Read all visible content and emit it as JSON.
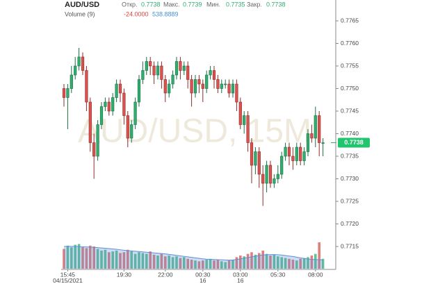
{
  "header": {
    "ohlc": [
      {
        "label": "Откр.",
        "value": "0.7738"
      },
      {
        "label": "Макс.",
        "value": "0.7739"
      },
      {
        "label": "Мин.",
        "value": "0.7735"
      },
      {
        "label": "Закр.",
        "value": "0.7738"
      }
    ],
    "volume_stats": [
      "-24.0000",
      "538.8889"
    ]
  },
  "chart_data": {
    "type": "candlestick",
    "title": "AUD/USD",
    "watermark": "AUD/USD, 15M",
    "categories": [
      null,
      "15:45",
      null,
      null,
      null,
      null,
      null,
      null,
      null,
      null,
      null,
      null,
      null,
      null,
      null,
      null,
      "19:30",
      null,
      null,
      null,
      null,
      null,
      null,
      null,
      null,
      null,
      null,
      "22:00",
      null,
      null,
      null,
      null,
      null,
      null,
      null,
      null,
      null,
      "00:30",
      null,
      null,
      null,
      null,
      null,
      null,
      null,
      null,
      null,
      "03:00",
      null,
      null,
      null,
      null,
      null,
      null,
      null,
      null,
      null,
      "05:30",
      null,
      null,
      null,
      null,
      null,
      null,
      null,
      null,
      null,
      "08:00",
      null,
      null
    ],
    "date_labels": [
      null,
      "04/15/2021",
      null,
      null,
      null,
      null,
      null,
      null,
      null,
      null,
      null,
      null,
      null,
      null,
      null,
      null,
      null,
      null,
      null,
      null,
      null,
      null,
      null,
      null,
      null,
      null,
      null,
      null,
      null,
      null,
      null,
      null,
      null,
      null,
      null,
      null,
      null,
      "16",
      null,
      null,
      null,
      null,
      null,
      null,
      null,
      null,
      null,
      "16",
      null,
      null,
      null,
      null,
      null,
      null,
      null,
      null,
      null,
      null,
      null,
      null,
      null,
      null,
      null,
      null,
      null,
      null,
      null,
      null,
      null,
      null
    ],
    "open": [
      0.775,
      0.7748,
      0.775,
      0.7753,
      0.7755,
      0.7757,
      0.7754,
      0.7747,
      0.7738,
      0.7735,
      0.7742,
      0.7746,
      0.7747,
      0.7745,
      0.7748,
      0.7751,
      0.7749,
      0.7744,
      0.7739,
      0.7742,
      0.7747,
      0.7752,
      0.7754,
      0.7756,
      0.7755,
      0.7753,
      0.7755,
      0.7752,
      0.7749,
      0.7751,
      0.7753,
      0.7756,
      0.7754,
      0.7755,
      0.7752,
      0.7749,
      0.7752,
      0.7751,
      0.775,
      0.7753,
      0.7754,
      0.7752,
      0.775,
      0.7751,
      0.7751,
      0.7749,
      0.7751,
      0.7747,
      0.7742,
      0.7744,
      0.7738,
      0.7733,
      0.7736,
      0.7731,
      0.7729,
      0.7733,
      0.7729,
      0.773,
      0.7731,
      0.7735,
      0.7737,
      0.7735,
      0.7734,
      0.7737,
      0.7734,
      0.7736,
      0.774,
      0.7739,
      0.7744,
      0.7738
    ],
    "high": [
      0.7751,
      0.7751,
      0.7755,
      0.7757,
      0.7759,
      0.7758,
      0.7755,
      0.7748,
      0.774,
      0.7743,
      0.7747,
      0.7748,
      0.7748,
      0.7749,
      0.7752,
      0.7752,
      0.775,
      0.7745,
      0.7743,
      0.7748,
      0.7753,
      0.7756,
      0.7757,
      0.7757,
      0.7756,
      0.7756,
      0.7756,
      0.7753,
      0.7752,
      0.7754,
      0.7757,
      0.7757,
      0.7756,
      0.7756,
      0.7753,
      0.7753,
      0.7753,
      0.7752,
      0.7754,
      0.7755,
      0.7755,
      0.7753,
      0.7752,
      0.7752,
      0.7752,
      0.7752,
      0.7752,
      0.7748,
      0.7745,
      0.7745,
      0.7739,
      0.7737,
      0.7737,
      0.7733,
      0.7734,
      0.7734,
      0.7731,
      0.7733,
      0.7736,
      0.7738,
      0.7738,
      0.7737,
      0.7738,
      0.7738,
      0.7737,
      0.7741,
      0.7742,
      0.7746,
      0.7745,
      0.7739
    ],
    "low": [
      0.7746,
      0.7741,
      0.7749,
      0.7752,
      0.7754,
      0.7753,
      0.7745,
      0.7736,
      0.773,
      0.7734,
      0.7741,
      0.7745,
      0.7744,
      0.7744,
      0.7747,
      0.7747,
      0.7742,
      0.7737,
      0.7738,
      0.7741,
      0.7746,
      0.7751,
      0.7753,
      0.7753,
      0.7751,
      0.7752,
      0.775,
      0.7747,
      0.7748,
      0.775,
      0.7752,
      0.7752,
      0.7753,
      0.775,
      0.7746,
      0.7748,
      0.7749,
      0.7747,
      0.7749,
      0.7752,
      0.775,
      0.7749,
      0.7749,
      0.775,
      0.7748,
      0.7748,
      0.7745,
      0.7741,
      0.774,
      0.7736,
      0.7729,
      0.7731,
      0.7728,
      0.7724,
      0.7727,
      0.7728,
      0.7728,
      0.7729,
      0.773,
      0.7734,
      0.7733,
      0.7732,
      0.7733,
      0.7733,
      0.7733,
      0.7735,
      0.7738,
      0.7737,
      0.7735,
      0.7735
    ],
    "close": [
      0.7748,
      0.775,
      0.7753,
      0.7755,
      0.7757,
      0.7754,
      0.7747,
      0.7738,
      0.7735,
      0.7742,
      0.7746,
      0.7747,
      0.7745,
      0.7748,
      0.7751,
      0.7749,
      0.7744,
      0.7739,
      0.7742,
      0.7747,
      0.7752,
      0.7754,
      0.7756,
      0.7755,
      0.7753,
      0.7755,
      0.7752,
      0.7749,
      0.7751,
      0.7753,
      0.7756,
      0.7754,
      0.7755,
      0.7752,
      0.7749,
      0.7752,
      0.7751,
      0.775,
      0.7753,
      0.7754,
      0.7752,
      0.775,
      0.7751,
      0.7751,
      0.7749,
      0.7751,
      0.7747,
      0.7742,
      0.7744,
      0.7738,
      0.7733,
      0.7736,
      0.7731,
      0.7729,
      0.7733,
      0.7729,
      0.773,
      0.7731,
      0.7735,
      0.7737,
      0.7735,
      0.7734,
      0.7737,
      0.7734,
      0.7736,
      0.774,
      0.7739,
      0.7744,
      0.7738,
      0.7738
    ],
    "up_color": "#2fae6f",
    "down_color": "#d9534f",
    "volume": {
      "name": "Volume (9)",
      "values": [
        1200,
        1400,
        1300,
        1450,
        1500,
        1300,
        1250,
        1400,
        1350,
        1200,
        1100,
        1150,
        1000,
        1050,
        1100,
        950,
        1000,
        1150,
        1050,
        900,
        1000,
        950,
        900,
        1050,
        850,
        800,
        900,
        750,
        800,
        700,
        750,
        650,
        700,
        600,
        550,
        500,
        450,
        500,
        550,
        600,
        500,
        550,
        450,
        400,
        500,
        550,
        700,
        800,
        750,
        900,
        1000,
        850,
        950,
        1100,
        900,
        800,
        850,
        750,
        700,
        650,
        600,
        550,
        500,
        600,
        650,
        700,
        800,
        900,
        1600,
        600
      ],
      "ma": [
        1350,
        1360,
        1360,
        1350,
        1340,
        1330,
        1320,
        1310,
        1300,
        1280,
        1260,
        1240,
        1220,
        1200,
        1180,
        1150,
        1120,
        1100,
        1080,
        1060,
        1040,
        1020,
        1000,
        980,
        960,
        940,
        920,
        900,
        870,
        840,
        810,
        780,
        750,
        720,
        690,
        660,
        630,
        600,
        580,
        570,
        560,
        550,
        540,
        530,
        520,
        530,
        560,
        600,
        640,
        680,
        720,
        760,
        800,
        830,
        850,
        860,
        860,
        850,
        830,
        800,
        770,
        740,
        700,
        660,
        620,
        590,
        570,
        555,
        545,
        538.8889
      ],
      "ma_color": "#5b8fd8"
    },
    "last_price": 0.7738,
    "ylim": [
      0.771,
      0.777
    ],
    "yticks": [
      {
        "value": 0.7715,
        "label": "0.7715"
      },
      {
        "value": 0.772,
        "label": "0.7720"
      },
      {
        "value": 0.7725,
        "label": "0.7725"
      },
      {
        "value": 0.773,
        "label": "0.7730"
      },
      {
        "value": 0.7735,
        "label": "0.7735"
      },
      {
        "value": 0.774,
        "label": "0.7740"
      },
      {
        "value": 0.7745,
        "label": "0.7745"
      },
      {
        "value": 0.775,
        "label": "0.7750"
      },
      {
        "value": 0.7755,
        "label": "0.7755"
      },
      {
        "value": 0.776,
        "label": "0.7760"
      },
      {
        "value": 0.7765,
        "label": "0.7765"
      }
    ]
  }
}
